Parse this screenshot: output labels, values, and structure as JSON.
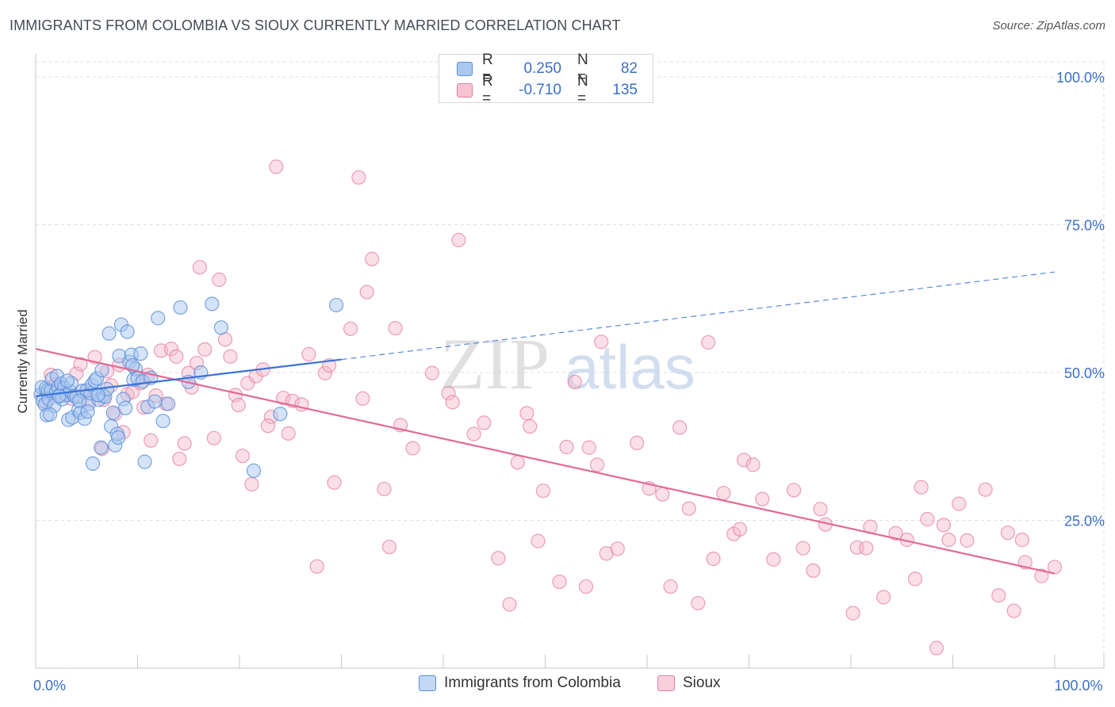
{
  "header": {
    "title": "IMMIGRANTS FROM COLOMBIA VS SIOUX CURRENTLY MARRIED CORRELATION CHART",
    "source": "Source: ZipAtlas.com"
  },
  "legend": {
    "series": [
      {
        "r_label": "R =",
        "r_value": "0.250",
        "n_label": "N =",
        "n_value": "82"
      },
      {
        "r_label": "R =",
        "r_value": "-0.710",
        "n_label": "N =",
        "n_value": "135"
      }
    ]
  },
  "watermark": {
    "zip": "ZIP",
    "atlas": "atlas"
  },
  "colors": {
    "blue_fill": "#aac8f0",
    "blue_stroke": "#5b8fd8",
    "blue_line": "#3b73d6",
    "pink_fill": "#f5b8ca",
    "pink_stroke": "#e57fa1",
    "pink_line": "#e36a93",
    "axis_label": "#3b6fc9",
    "grid": "#dcdcdc"
  },
  "chart_data": {
    "type": "scatter",
    "title": "IMMIGRANTS FROM COLOMBIA VS SIOUX CURRENTLY MARRIED CORRELATION CHART",
    "xlabel": "",
    "ylabel": "Currently Married",
    "xlim": [
      0,
      100
    ],
    "ylim": [
      0,
      100
    ],
    "x_tick_labels": [
      {
        "value": 0,
        "label": "0.0%"
      },
      {
        "value": 100,
        "label": "100.0%"
      }
    ],
    "y_tick_labels": [
      {
        "value": 25,
        "label": "25.0%"
      },
      {
        "value": 50,
        "label": "50.0%"
      },
      {
        "value": 75,
        "label": "75.0%"
      },
      {
        "value": 100,
        "label": "100.0%"
      }
    ],
    "series": [
      {
        "name": "Immigrants from Colombia",
        "color": "blue",
        "trend": {
          "x0": 0,
          "y0": 46.0,
          "x1": 30,
          "y1": 52.2,
          "dashed_to_x": 100,
          "dashed_to_y": 67.0
        },
        "points": [
          [
            0.5,
            46.3
          ],
          [
            0.6,
            47.5
          ],
          [
            0.7,
            45.2
          ],
          [
            0.9,
            44.6
          ],
          [
            1.0,
            47.3
          ],
          [
            1.1,
            42.8
          ],
          [
            1.2,
            47.0
          ],
          [
            1.3,
            45.5
          ],
          [
            1.5,
            46.9
          ],
          [
            1.6,
            48.9
          ],
          [
            1.8,
            44.4
          ],
          [
            2.0,
            46.7
          ],
          [
            2.1,
            49.4
          ],
          [
            2.2,
            47.5
          ],
          [
            2.4,
            46.2
          ],
          [
            2.5,
            48.1
          ],
          [
            2.6,
            45.5
          ],
          [
            2.8,
            47.4
          ],
          [
            3.0,
            46.2
          ],
          [
            3.2,
            42.0
          ],
          [
            3.4,
            46.8
          ],
          [
            3.5,
            48.2
          ],
          [
            3.6,
            42.4
          ],
          [
            3.8,
            46.0
          ],
          [
            4.0,
            45.9
          ],
          [
            4.2,
            43.7
          ],
          [
            4.4,
            43.2
          ],
          [
            4.6,
            46.9
          ],
          [
            4.8,
            42.2
          ],
          [
            5.0,
            47.0
          ],
          [
            5.2,
            44.7
          ],
          [
            5.4,
            46.5
          ],
          [
            5.5,
            47.9
          ],
          [
            5.6,
            34.6
          ],
          [
            5.8,
            48.6
          ],
          [
            6.0,
            49.0
          ],
          [
            6.2,
            45.4
          ],
          [
            6.4,
            37.3
          ],
          [
            6.5,
            50.4
          ],
          [
            6.6,
            46.1
          ],
          [
            6.8,
            45.9
          ],
          [
            7.0,
            47.2
          ],
          [
            7.2,
            56.6
          ],
          [
            7.4,
            40.9
          ],
          [
            7.6,
            43.2
          ],
          [
            7.8,
            37.7
          ],
          [
            8.0,
            39.6
          ],
          [
            8.2,
            52.8
          ],
          [
            8.4,
            58.1
          ],
          [
            8.6,
            45.5
          ],
          [
            8.8,
            44.0
          ],
          [
            9.0,
            56.9
          ],
          [
            9.2,
            51.8
          ],
          [
            9.4,
            53.0
          ],
          [
            9.6,
            48.8
          ],
          [
            9.8,
            50.6
          ],
          [
            10.0,
            49.0
          ],
          [
            10.3,
            53.2
          ],
          [
            10.5,
            48.5
          ],
          [
            10.7,
            34.9
          ],
          [
            11.0,
            44.2
          ],
          [
            11.3,
            49.1
          ],
          [
            11.7,
            45.1
          ],
          [
            12.0,
            59.2
          ],
          [
            12.5,
            41.8
          ],
          [
            13.0,
            44.7
          ],
          [
            14.2,
            61.0
          ],
          [
            15.0,
            48.4
          ],
          [
            16.2,
            50.0
          ],
          [
            17.3,
            61.6
          ],
          [
            18.2,
            57.6
          ],
          [
            21.4,
            33.4
          ],
          [
            24.0,
            43.0
          ],
          [
            29.5,
            61.4
          ],
          [
            1.4,
            42.9
          ],
          [
            3.1,
            48.6
          ],
          [
            4.3,
            45.2
          ],
          [
            5.1,
            43.4
          ],
          [
            6.1,
            46.2
          ],
          [
            8.1,
            39.0
          ],
          [
            9.5,
            51.2
          ],
          [
            2.3,
            46.0
          ]
        ]
      },
      {
        "name": "Sioux",
        "color": "pink",
        "trend": {
          "x0": 0,
          "y0": 54.0,
          "x1": 100,
          "y1": 16.0
        },
        "points": [
          [
            1.0,
            44.9
          ],
          [
            1.5,
            49.6
          ],
          [
            2.5,
            47.3
          ],
          [
            3.0,
            46.4
          ],
          [
            4.0,
            49.8
          ],
          [
            4.4,
            51.4
          ],
          [
            5.2,
            45.3
          ],
          [
            5.8,
            52.6
          ],
          [
            6.5,
            37.1
          ],
          [
            6.7,
            45.4
          ],
          [
            7.0,
            50.2
          ],
          [
            7.4,
            47.8
          ],
          [
            8.2,
            51.3
          ],
          [
            8.6,
            39.9
          ],
          [
            9.0,
            46.3
          ],
          [
            9.5,
            46.7
          ],
          [
            10.3,
            48.2
          ],
          [
            10.6,
            44.1
          ],
          [
            11.0,
            49.6
          ],
          [
            11.8,
            46.1
          ],
          [
            12.3,
            53.7
          ],
          [
            12.8,
            44.7
          ],
          [
            13.3,
            54.0
          ],
          [
            13.8,
            52.7
          ],
          [
            14.1,
            35.4
          ],
          [
            14.6,
            38.0
          ],
          [
            15.0,
            49.9
          ],
          [
            15.8,
            51.6
          ],
          [
            16.1,
            67.8
          ],
          [
            16.6,
            53.9
          ],
          [
            17.5,
            38.9
          ],
          [
            18.0,
            65.7
          ],
          [
            18.6,
            55.6
          ],
          [
            19.1,
            52.7
          ],
          [
            19.6,
            46.2
          ],
          [
            20.3,
            35.9
          ],
          [
            20.8,
            48.2
          ],
          [
            21.2,
            31.1
          ],
          [
            21.6,
            49.4
          ],
          [
            22.3,
            50.5
          ],
          [
            23.1,
            42.5
          ],
          [
            23.6,
            84.8
          ],
          [
            24.3,
            45.7
          ],
          [
            24.8,
            39.7
          ],
          [
            25.2,
            45.2
          ],
          [
            26.1,
            44.6
          ],
          [
            26.8,
            53.1
          ],
          [
            27.6,
            17.2
          ],
          [
            28.4,
            49.9
          ],
          [
            28.8,
            51.2
          ],
          [
            29.3,
            31.4
          ],
          [
            30.9,
            57.4
          ],
          [
            31.7,
            83.0
          ],
          [
            32.1,
            45.6
          ],
          [
            32.5,
            63.6
          ],
          [
            33.0,
            69.2
          ],
          [
            34.2,
            30.3
          ],
          [
            34.7,
            20.5
          ],
          [
            35.3,
            57.5
          ],
          [
            35.8,
            41.1
          ],
          [
            37.0,
            37.2
          ],
          [
            38.9,
            49.9
          ],
          [
            40.5,
            46.5
          ],
          [
            40.9,
            45.0
          ],
          [
            41.5,
            72.4
          ],
          [
            43.0,
            39.6
          ],
          [
            44.0,
            41.5
          ],
          [
            45.4,
            18.6
          ],
          [
            46.5,
            10.8
          ],
          [
            47.3,
            34.8
          ],
          [
            48.2,
            43.1
          ],
          [
            48.5,
            40.9
          ],
          [
            49.3,
            21.5
          ],
          [
            49.8,
            30.0
          ],
          [
            51.4,
            14.6
          ],
          [
            52.1,
            37.4
          ],
          [
            52.9,
            48.4
          ],
          [
            54.0,
            13.8
          ],
          [
            54.3,
            37.3
          ],
          [
            55.1,
            34.4
          ],
          [
            55.5,
            55.2
          ],
          [
            56.0,
            19.4
          ],
          [
            57.1,
            20.2
          ],
          [
            59.0,
            38.1
          ],
          [
            60.2,
            30.4
          ],
          [
            61.5,
            29.4
          ],
          [
            62.3,
            13.8
          ],
          [
            63.2,
            40.7
          ],
          [
            64.1,
            27.0
          ],
          [
            65.0,
            11.0
          ],
          [
            66.0,
            55.1
          ],
          [
            66.5,
            18.5
          ],
          [
            67.5,
            29.6
          ],
          [
            68.5,
            22.7
          ],
          [
            69.1,
            23.5
          ],
          [
            69.5,
            35.2
          ],
          [
            70.4,
            34.4
          ],
          [
            71.3,
            28.6
          ],
          [
            72.4,
            18.4
          ],
          [
            74.4,
            30.1
          ],
          [
            75.3,
            20.3
          ],
          [
            76.3,
            16.5
          ],
          [
            77.0,
            26.9
          ],
          [
            77.5,
            24.3
          ],
          [
            80.2,
            9.3
          ],
          [
            80.6,
            20.4
          ],
          [
            81.5,
            20.3
          ],
          [
            81.9,
            23.9
          ],
          [
            83.2,
            12.0
          ],
          [
            84.4,
            22.8
          ],
          [
            85.5,
            21.7
          ],
          [
            86.3,
            15.1
          ],
          [
            86.9,
            30.6
          ],
          [
            87.5,
            25.2
          ],
          [
            88.4,
            3.4
          ],
          [
            89.1,
            24.2
          ],
          [
            89.6,
            21.7
          ],
          [
            90.6,
            27.8
          ],
          [
            91.4,
            21.6
          ],
          [
            93.2,
            30.2
          ],
          [
            94.5,
            12.3
          ],
          [
            95.4,
            22.9
          ],
          [
            96.0,
            9.7
          ],
          [
            96.8,
            21.7
          ],
          [
            97.1,
            17.9
          ],
          [
            98.7,
            15.6
          ],
          [
            100.0,
            17.1
          ],
          [
            2.0,
            48.0
          ],
          [
            3.5,
            45.6
          ],
          [
            5.0,
            46.9
          ],
          [
            7.8,
            43.0
          ],
          [
            11.3,
            38.5
          ],
          [
            15.3,
            47.5
          ],
          [
            19.9,
            44.5
          ],
          [
            22.8,
            41.0
          ]
        ]
      }
    ]
  },
  "bottom_legend": {
    "items": [
      "Immigrants from Colombia",
      "Sioux"
    ]
  }
}
